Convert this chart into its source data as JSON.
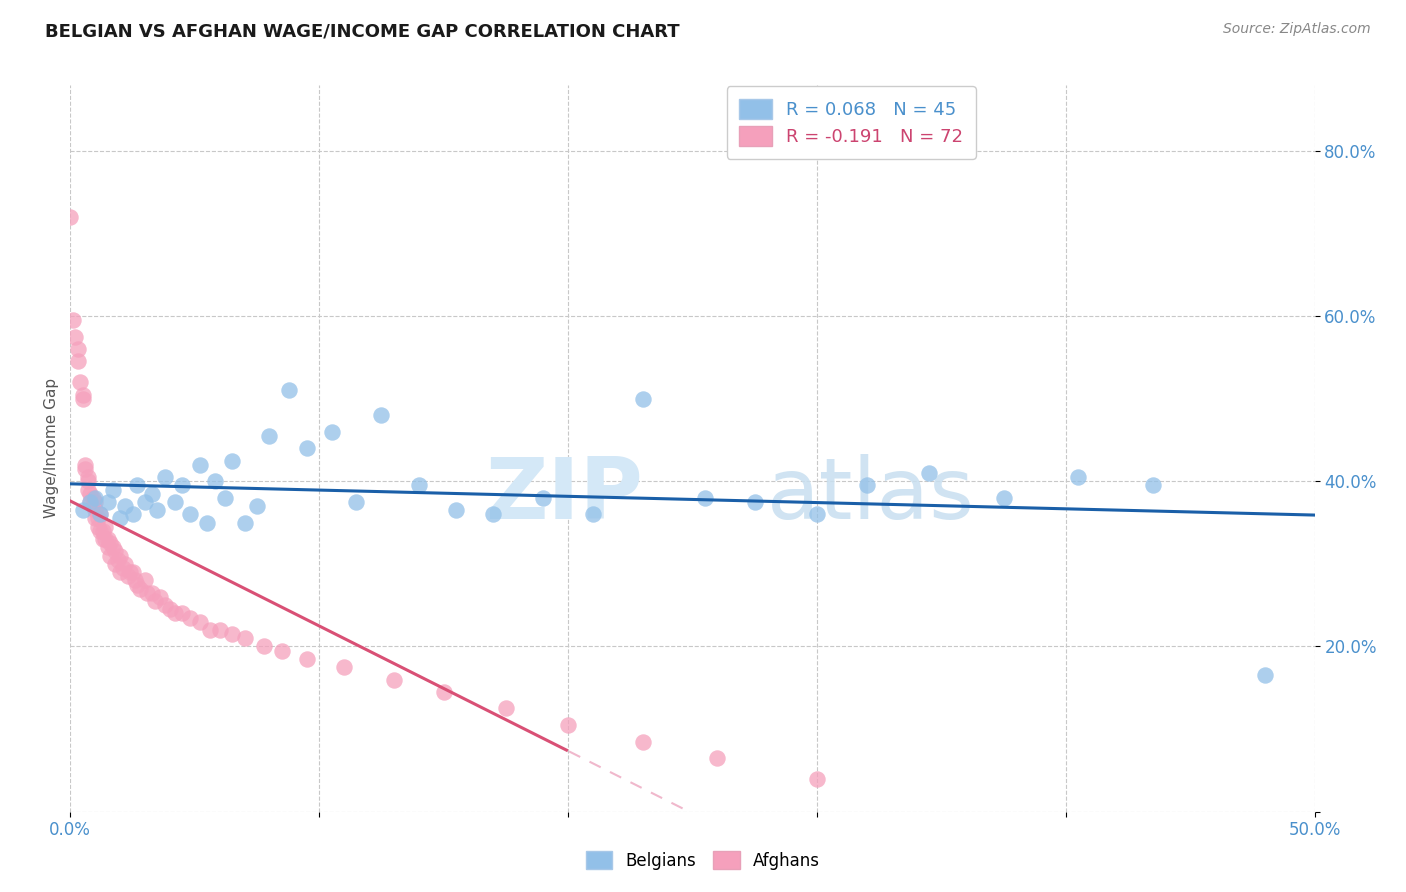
{
  "title": "BELGIAN VS AFGHAN WAGE/INCOME GAP CORRELATION CHART",
  "source": "Source: ZipAtlas.com",
  "ylabel": "Wage/Income Gap",
  "xlim": [
    0.0,
    0.5
  ],
  "ylim": [
    0.0,
    0.88
  ],
  "legend_r1": "R = 0.068",
  "legend_n1": "N = 45",
  "legend_r2": "R = -0.191",
  "legend_n2": "N = 72",
  "belgian_color": "#92c0e8",
  "afghan_color": "#f5a0bc",
  "trendline_belgian_color": "#1a5fa8",
  "trendline_afghan_solid": "#d95075",
  "trendline_afghan_dashed": "#f0b8cc",
  "watermark_zip_color": "#d4e8f7",
  "watermark_atlas_color": "#c8dff0",
  "background_color": "#ffffff",
  "belgians_x": [
    0.005,
    0.008,
    0.01,
    0.012,
    0.015,
    0.017,
    0.02,
    0.022,
    0.025,
    0.027,
    0.03,
    0.033,
    0.035,
    0.038,
    0.042,
    0.045,
    0.048,
    0.052,
    0.055,
    0.058,
    0.062,
    0.065,
    0.07,
    0.075,
    0.08,
    0.088,
    0.095,
    0.105,
    0.115,
    0.125,
    0.14,
    0.155,
    0.17,
    0.19,
    0.21,
    0.23,
    0.255,
    0.275,
    0.3,
    0.32,
    0.345,
    0.375,
    0.405,
    0.435,
    0.48
  ],
  "belgians_y": [
    0.365,
    0.375,
    0.38,
    0.36,
    0.375,
    0.39,
    0.355,
    0.37,
    0.36,
    0.395,
    0.375,
    0.385,
    0.365,
    0.405,
    0.375,
    0.395,
    0.36,
    0.42,
    0.35,
    0.4,
    0.38,
    0.425,
    0.35,
    0.37,
    0.455,
    0.51,
    0.44,
    0.46,
    0.375,
    0.48,
    0.395,
    0.365,
    0.36,
    0.38,
    0.36,
    0.5,
    0.38,
    0.375,
    0.36,
    0.395,
    0.41,
    0.38,
    0.405,
    0.395,
    0.165
  ],
  "afghans_x": [
    0.0,
    0.001,
    0.002,
    0.003,
    0.003,
    0.004,
    0.005,
    0.005,
    0.006,
    0.006,
    0.007,
    0.007,
    0.007,
    0.008,
    0.008,
    0.009,
    0.009,
    0.01,
    0.01,
    0.01,
    0.011,
    0.011,
    0.012,
    0.012,
    0.013,
    0.013,
    0.014,
    0.014,
    0.015,
    0.015,
    0.016,
    0.016,
    0.017,
    0.018,
    0.018,
    0.019,
    0.02,
    0.02,
    0.021,
    0.022,
    0.023,
    0.024,
    0.025,
    0.026,
    0.027,
    0.028,
    0.03,
    0.031,
    0.033,
    0.034,
    0.036,
    0.038,
    0.04,
    0.042,
    0.045,
    0.048,
    0.052,
    0.056,
    0.06,
    0.065,
    0.07,
    0.078,
    0.085,
    0.095,
    0.11,
    0.13,
    0.15,
    0.175,
    0.2,
    0.23,
    0.26,
    0.3
  ],
  "afghans_y": [
    0.72,
    0.595,
    0.575,
    0.545,
    0.56,
    0.52,
    0.505,
    0.5,
    0.42,
    0.415,
    0.4,
    0.405,
    0.39,
    0.385,
    0.375,
    0.38,
    0.37,
    0.375,
    0.365,
    0.355,
    0.355,
    0.345,
    0.36,
    0.34,
    0.34,
    0.33,
    0.345,
    0.33,
    0.32,
    0.33,
    0.325,
    0.31,
    0.32,
    0.315,
    0.3,
    0.305,
    0.29,
    0.31,
    0.295,
    0.3,
    0.285,
    0.29,
    0.29,
    0.28,
    0.275,
    0.27,
    0.28,
    0.265,
    0.265,
    0.255,
    0.26,
    0.25,
    0.245,
    0.24,
    0.24,
    0.235,
    0.23,
    0.22,
    0.22,
    0.215,
    0.21,
    0.2,
    0.195,
    0.185,
    0.175,
    0.16,
    0.145,
    0.125,
    0.105,
    0.085,
    0.065,
    0.04
  ]
}
